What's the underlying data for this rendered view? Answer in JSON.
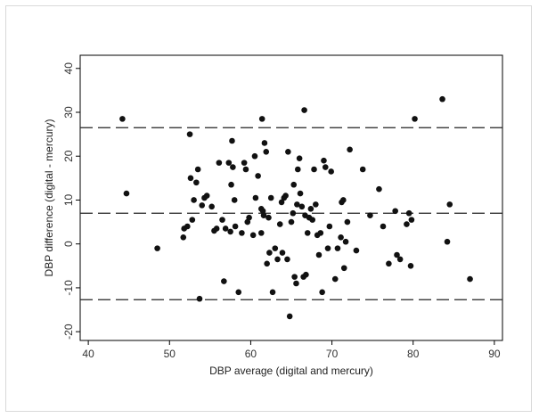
{
  "chart_data": {
    "type": "scatter",
    "title": "",
    "xlabel": "DBP average (digital and mercury)",
    "ylabel": "DBP difference (digital - mercury)",
    "xlim": [
      39,
      91
    ],
    "ylim": [
      -22,
      43
    ],
    "x_ticks": [
      40,
      50,
      60,
      70,
      80,
      90
    ],
    "y_ticks": [
      -20,
      -10,
      0,
      10,
      20,
      30,
      40
    ],
    "grid": false,
    "legend": "none",
    "marker_color": "#111111",
    "reference_lines": [
      {
        "y": 26.5
      },
      {
        "y": 7
      },
      {
        "y": -12.7
      }
    ],
    "series": [
      {
        "points": [
          [
            44.2,
            28.5
          ],
          [
            44.7,
            11.5
          ],
          [
            48.5,
            -1
          ],
          [
            51.7,
            1.5
          ],
          [
            51.8,
            3.5
          ],
          [
            52.2,
            4
          ],
          [
            52.5,
            25
          ],
          [
            52.6,
            15
          ],
          [
            52.8,
            5.5
          ],
          [
            53,
            10
          ],
          [
            53.3,
            14
          ],
          [
            53.5,
            17
          ],
          [
            53.7,
            -12.5
          ],
          [
            54,
            8.8
          ],
          [
            54.3,
            10.5
          ],
          [
            54.6,
            11
          ],
          [
            55.2,
            8.5
          ],
          [
            55.5,
            3
          ],
          [
            55.8,
            3.5
          ],
          [
            56.1,
            18.5
          ],
          [
            56.5,
            5.5
          ],
          [
            56.7,
            -8.5
          ],
          [
            56.9,
            3.5
          ],
          [
            57.3,
            18.5
          ],
          [
            57.5,
            2.8
          ],
          [
            57.6,
            13.5
          ],
          [
            57.7,
            23.5
          ],
          [
            57.8,
            17.5
          ],
          [
            58,
            10
          ],
          [
            58.1,
            4
          ],
          [
            58.5,
            -11
          ],
          [
            58.9,
            2.5
          ],
          [
            59.2,
            18.5
          ],
          [
            59.4,
            17
          ],
          [
            59.6,
            5
          ],
          [
            59.8,
            6
          ],
          [
            60.3,
            2
          ],
          [
            60.5,
            20
          ],
          [
            60.6,
            10.5
          ],
          [
            60.9,
            15.5
          ],
          [
            61.3,
            8
          ],
          [
            61.3,
            2.5
          ],
          [
            61.4,
            28.5
          ],
          [
            61.5,
            7.5
          ],
          [
            61.6,
            6.5
          ],
          [
            61.7,
            23
          ],
          [
            61.9,
            21
          ],
          [
            62,
            -4.5
          ],
          [
            62.2,
            6
          ],
          [
            62.3,
            -2
          ],
          [
            62.5,
            10.5
          ],
          [
            62.7,
            -11
          ],
          [
            63,
            -1
          ],
          [
            63.3,
            -3.5
          ],
          [
            63.6,
            4.5
          ],
          [
            63.8,
            9.5
          ],
          [
            63.9,
            -2
          ],
          [
            64.1,
            10.5
          ],
          [
            64.3,
            11
          ],
          [
            64.5,
            -3.5
          ],
          [
            64.6,
            21
          ],
          [
            64.8,
            -16.5
          ],
          [
            65,
            5
          ],
          [
            65.2,
            7
          ],
          [
            65.3,
            13.5
          ],
          [
            65.4,
            -7.5
          ],
          [
            65.6,
            -9
          ],
          [
            65.7,
            9
          ],
          [
            65.8,
            17
          ],
          [
            66,
            19.5
          ],
          [
            66.1,
            11.5
          ],
          [
            66.3,
            8.5
          ],
          [
            66.5,
            -7.5
          ],
          [
            66.6,
            30.5
          ],
          [
            66.7,
            6.5
          ],
          [
            66.8,
            -7
          ],
          [
            67,
            2.5
          ],
          [
            67.2,
            6
          ],
          [
            67.4,
            8
          ],
          [
            67.6,
            5.5
          ],
          [
            67.8,
            17
          ],
          [
            68,
            9
          ],
          [
            68.2,
            2
          ],
          [
            68.4,
            -2.5
          ],
          [
            68.6,
            2.5
          ],
          [
            68.8,
            -11
          ],
          [
            69,
            19
          ],
          [
            69.2,
            17.5
          ],
          [
            69.5,
            -1
          ],
          [
            69.7,
            4
          ],
          [
            69.9,
            16.5
          ],
          [
            70.4,
            -8
          ],
          [
            70.7,
            -1
          ],
          [
            71.1,
            1.5
          ],
          [
            71.2,
            9.5
          ],
          [
            71.4,
            10
          ],
          [
            71.5,
            -5.5
          ],
          [
            71.7,
            0.5
          ],
          [
            71.9,
            5
          ],
          [
            72.2,
            21.5
          ],
          [
            73,
            -1.5
          ],
          [
            73.8,
            17
          ],
          [
            74.7,
            6.5
          ],
          [
            75.8,
            12.5
          ],
          [
            76.3,
            4
          ],
          [
            77,
            -4.5
          ],
          [
            77.8,
            7.5
          ],
          [
            78,
            -2.5
          ],
          [
            78.4,
            -3.5
          ],
          [
            79.2,
            4.5
          ],
          [
            79.5,
            7
          ],
          [
            79.7,
            -5
          ],
          [
            79.8,
            5.5
          ],
          [
            80.2,
            28.5
          ],
          [
            83.6,
            33
          ],
          [
            84.2,
            0.5
          ],
          [
            84.5,
            9
          ],
          [
            87,
            -8
          ]
        ]
      }
    ]
  }
}
